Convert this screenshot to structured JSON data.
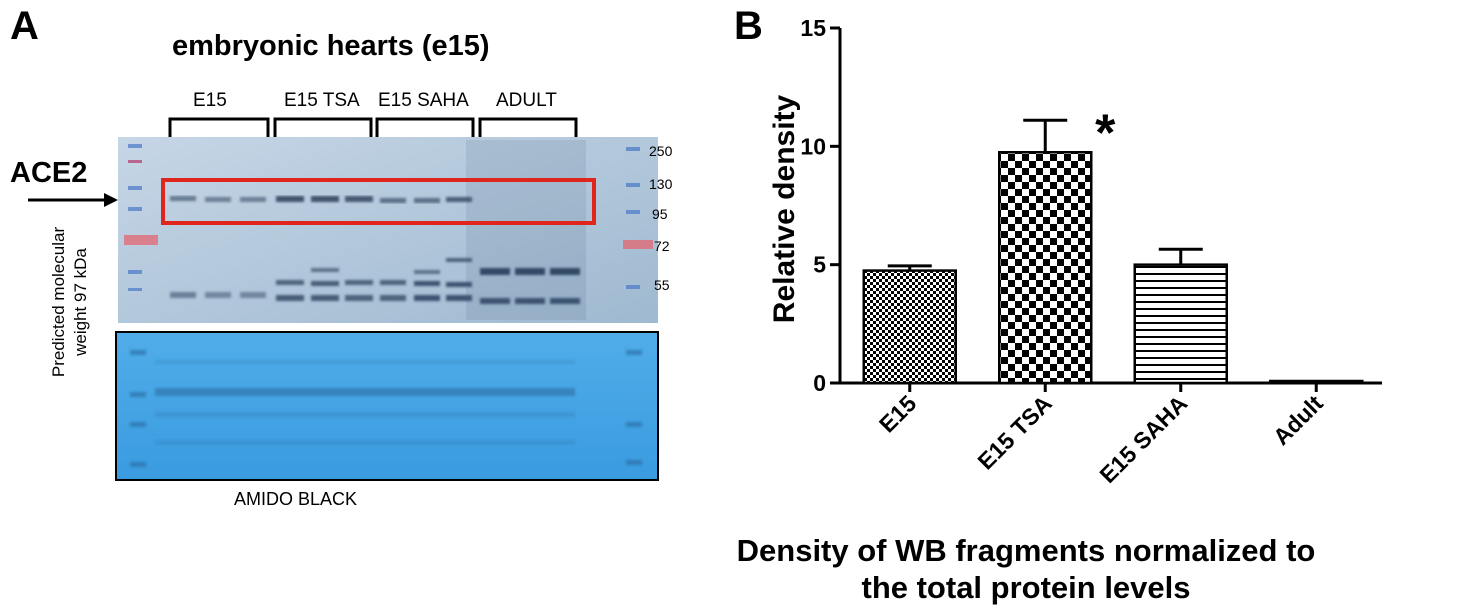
{
  "panel_a": {
    "letter": "A",
    "title": "embryonic hearts (e15)",
    "groups": [
      "E15",
      "E15 TSA",
      "E15 SAHA",
      "ADULT"
    ],
    "target_label": "ACE2",
    "mw_markers": [
      "250",
      "130",
      "95",
      "72",
      "55"
    ],
    "side_label_line1": "Predicted molecular",
    "side_label_line2": "weight 97 kDa",
    "stain_label": "AMIDO BLACK",
    "colors": {
      "highlight_box": "#e0261c",
      "membrane": "#a9c6df",
      "stain": "#45a6e6"
    }
  },
  "panel_b": {
    "letter": "B",
    "caption_line1": "Density of WB fragments normalized to",
    "caption_line2": "the total protein levels"
  },
  "chart_data": {
    "type": "bar",
    "categories": [
      "E15",
      "E15 TSA",
      "E15 SAHA",
      "Adult"
    ],
    "values": [
      4.75,
      9.75,
      5.0,
      0.05
    ],
    "errors": [
      0.2,
      1.35,
      0.65,
      0.0
    ],
    "patterns": [
      "fine-checker",
      "checker",
      "horizontal-lines",
      "solid"
    ],
    "significance": [
      {
        "category": "E15 TSA",
        "label": "*"
      }
    ],
    "title": "",
    "xlabel": "",
    "ylabel": "Relative density",
    "ylim": [
      0,
      15
    ],
    "yticks": [
      0,
      5,
      10,
      15
    ],
    "grid": false,
    "legend": "none"
  }
}
